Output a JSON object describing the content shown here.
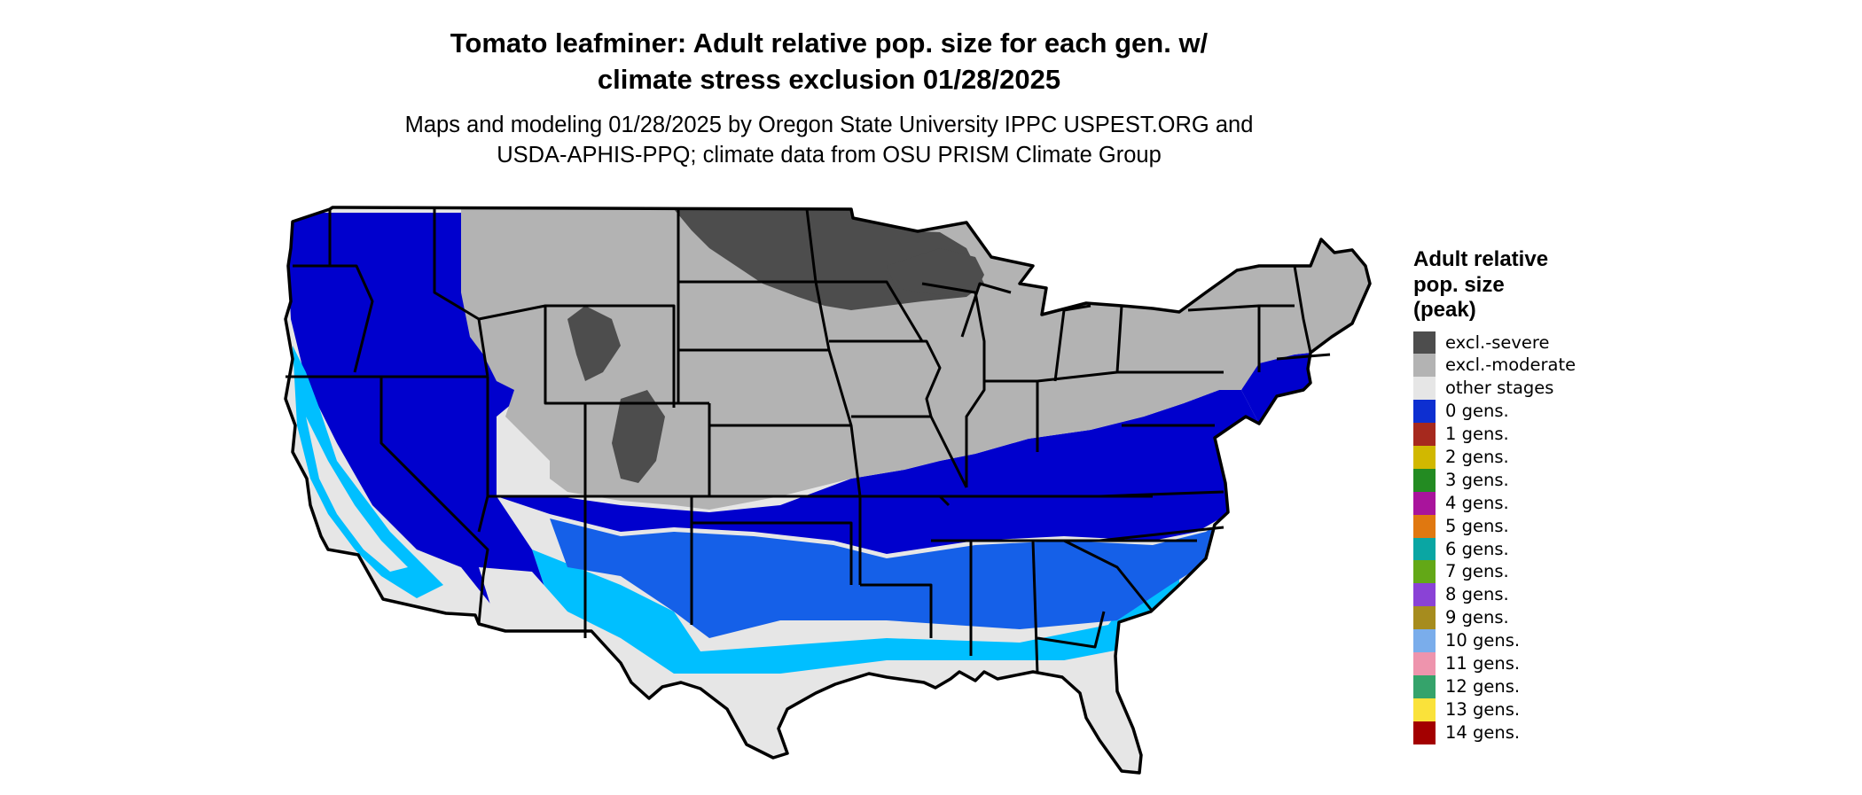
{
  "title_line1": "Tomato leafminer: Adult relative pop. size for each gen. w/",
  "title_line2": "climate stress exclusion 01/28/2025",
  "subtitle_line1": "Maps and modeling 01/28/2025 by Oregon State University IPPC USPEST.ORG and",
  "subtitle_line2": "USDA-APHIS-PPQ; climate data from OSU PRISM Climate Group",
  "legend": {
    "title_line1": "Adult relative",
    "title_line2": "pop. size",
    "title_line3": "(peak)",
    "items": [
      {
        "label": "excl.-severe",
        "color": "#4d4d4d"
      },
      {
        "label": "excl.-moderate",
        "color": "#b3b3b3"
      },
      {
        "label": "other stages",
        "color": "#e6e6e6"
      },
      {
        "label": "0 gens.",
        "color": "#0d2fd1"
      },
      {
        "label": "1 gens.",
        "color": "#a6291e"
      },
      {
        "label": "2 gens.",
        "color": "#d1b800"
      },
      {
        "label": "3 gens.",
        "color": "#238b22"
      },
      {
        "label": "4 gens.",
        "color": "#a9149c"
      },
      {
        "label": "5 gens.",
        "color": "#e07810"
      },
      {
        "label": "6 gens.",
        "color": "#0aa6a3"
      },
      {
        "label": "7 gens.",
        "color": "#63a817"
      },
      {
        "label": "8 gens.",
        "color": "#8a42d6"
      },
      {
        "label": "9 gens.",
        "color": "#a68c1e"
      },
      {
        "label": "10 gens.",
        "color": "#7aadeb"
      },
      {
        "label": "11 gens.",
        "color": "#ee94ad"
      },
      {
        "label": "12 gens.",
        "color": "#35a36b"
      },
      {
        "label": "13 gens.",
        "color": "#fae23a"
      },
      {
        "label": "14 gens.",
        "color": "#a30000"
      }
    ]
  },
  "map_colors": {
    "deep_blue": "#0000cd",
    "mid_blue": "#1560e8",
    "light_blue": "#00bfff",
    "other": "#e6e6e6",
    "moderate": "#b3b3b3",
    "severe": "#4d4d4d"
  }
}
